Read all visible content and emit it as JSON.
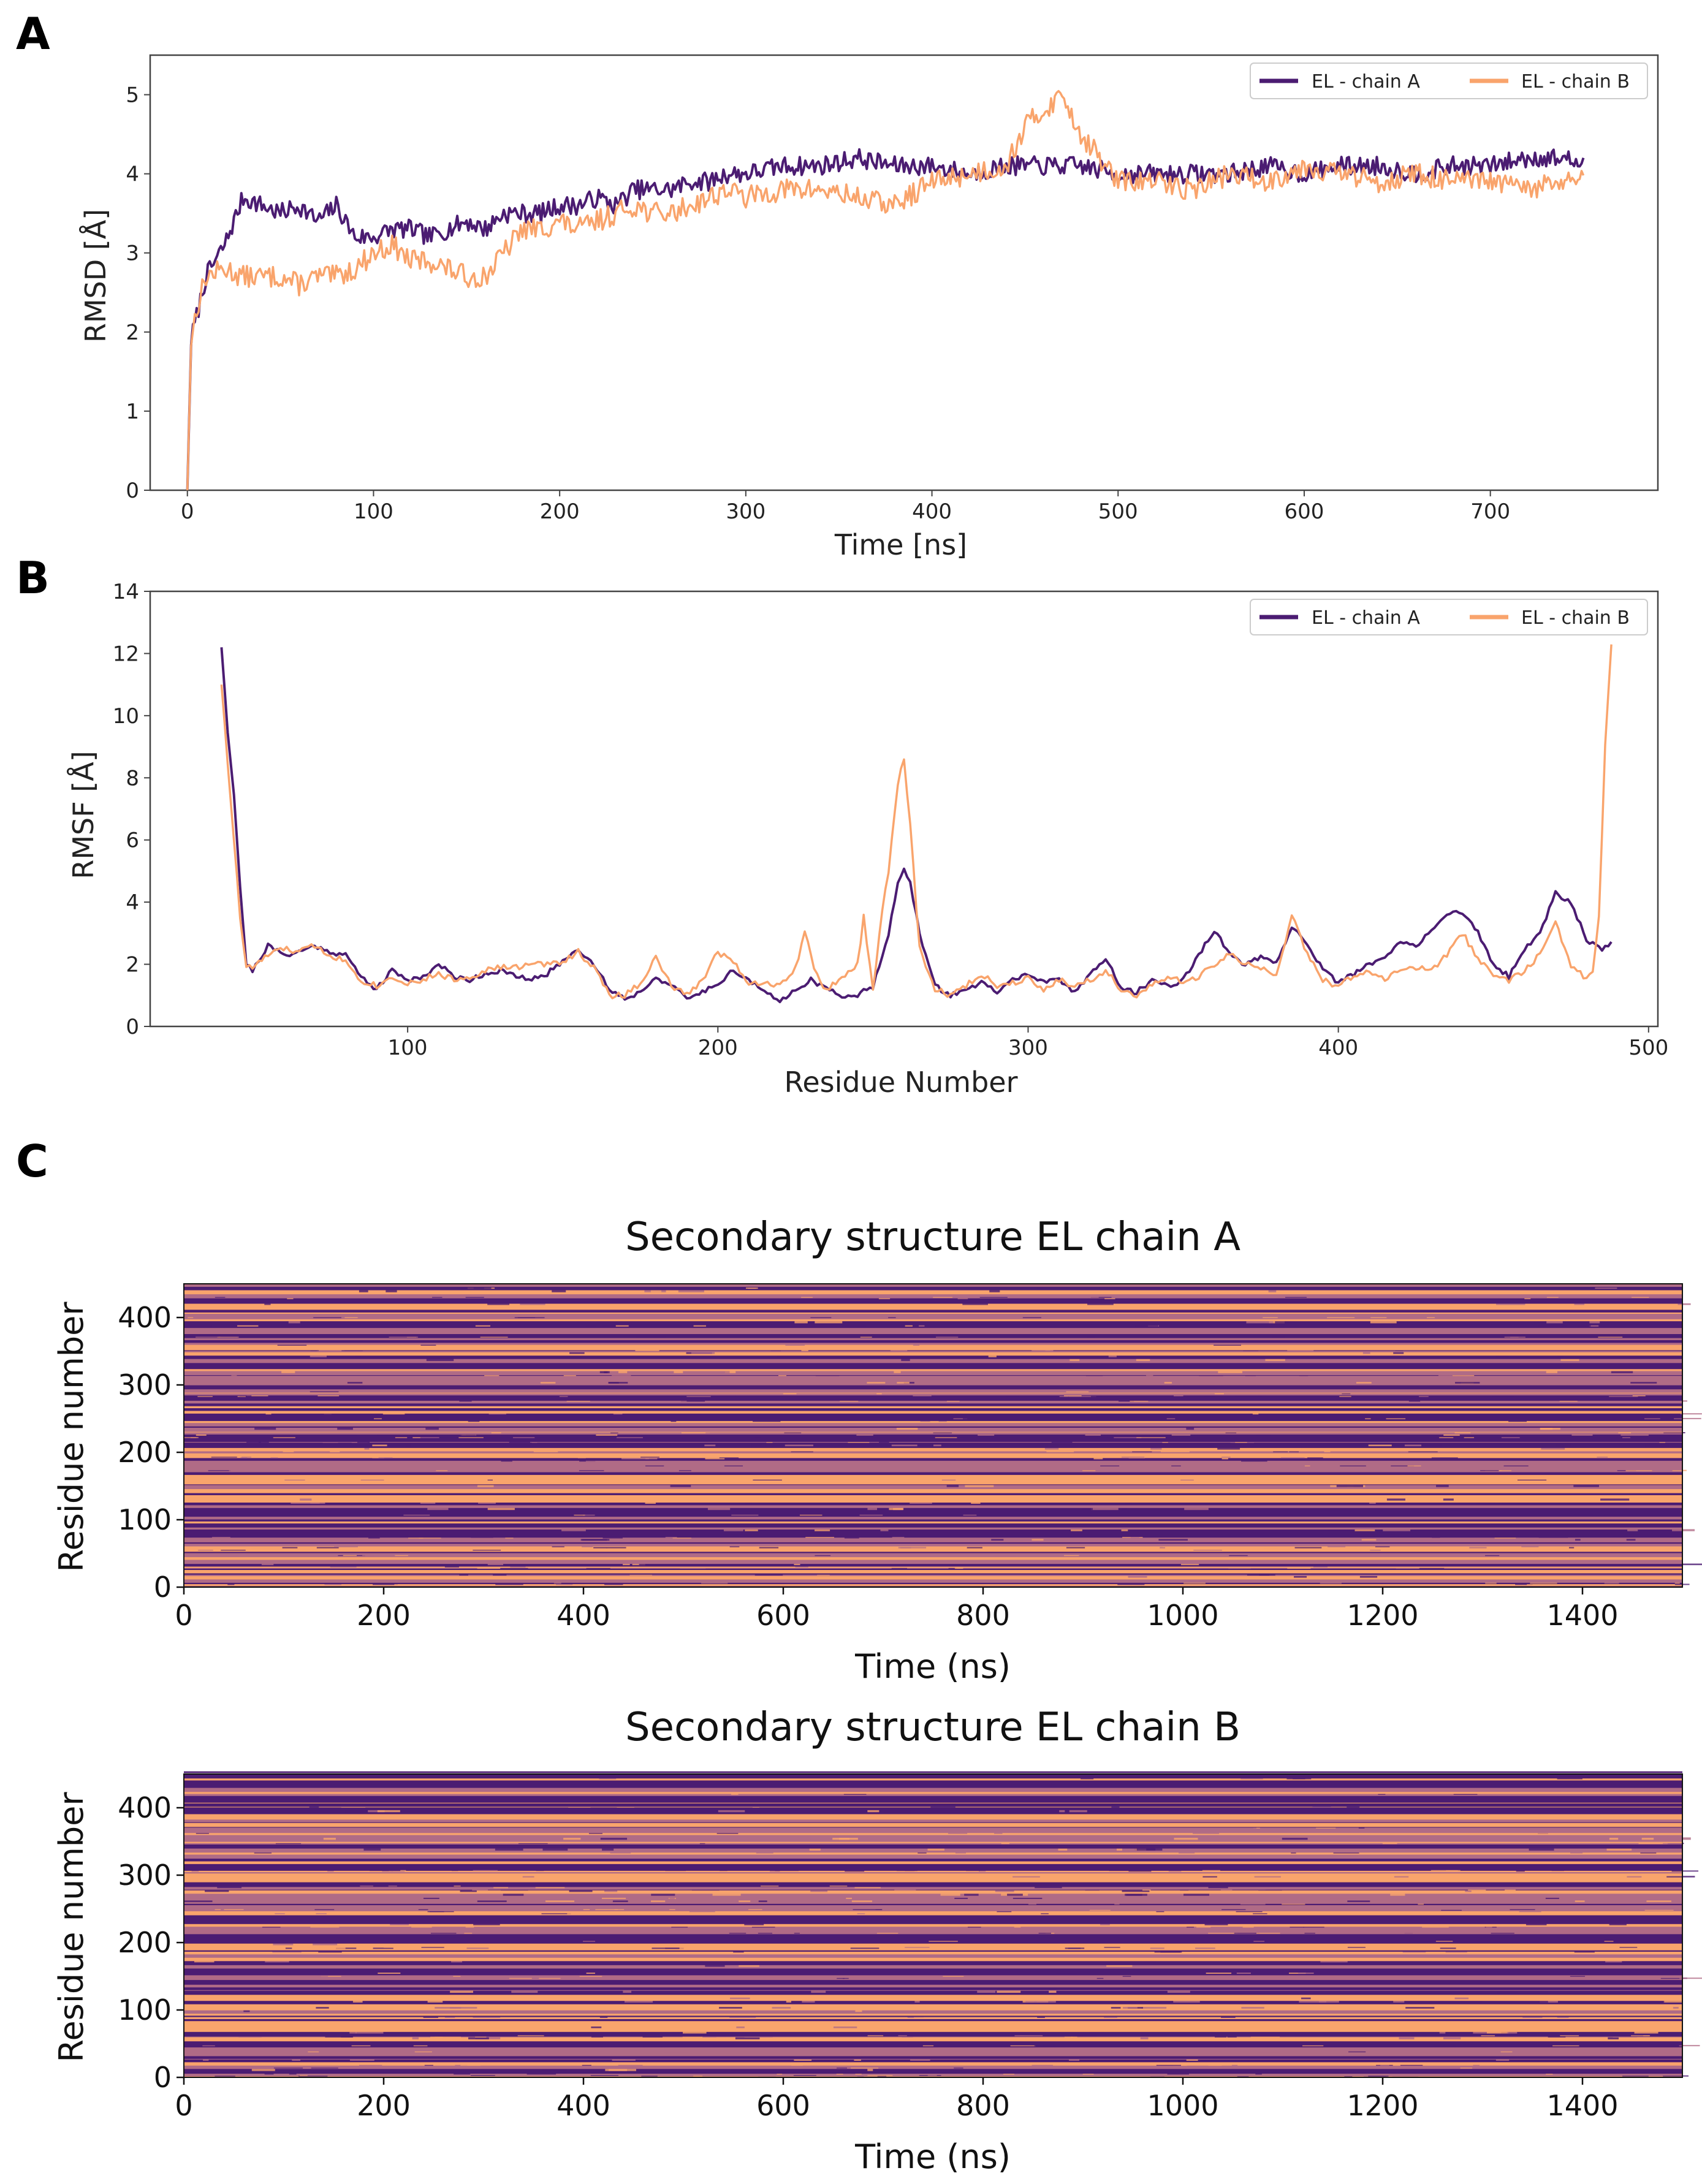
{
  "figure": {
    "panel_letters": [
      "A",
      "B",
      "C"
    ]
  },
  "colors": {
    "chain_a": "#4b1c72",
    "chain_b": "#f9a46c",
    "ss_mid": "#b06b86",
    "axis": "#444444"
  },
  "chart_data": [
    {
      "id": "rmsd",
      "type": "line",
      "panel": "A",
      "title": "",
      "xlabel": "Time [ns]",
      "ylabel": "RMSD [Å]",
      "xlim": [
        -20,
        790
      ],
      "ylim": [
        0,
        5.5
      ],
      "xticks": [
        0,
        100,
        200,
        300,
        400,
        500,
        600,
        700
      ],
      "yticks": [
        0,
        1,
        2,
        3,
        4,
        5
      ],
      "legend": [
        "EL - chain A",
        "EL - chain B"
      ],
      "legend_position": "top-right",
      "series": [
        {
          "name": "EL - chain A",
          "x": [
            0,
            2,
            5,
            10,
            20,
            30,
            40,
            50,
            60,
            70,
            80,
            90,
            100,
            110,
            120,
            130,
            140,
            150,
            160,
            170,
            180,
            190,
            200,
            210,
            220,
            230,
            240,
            250,
            260,
            270,
            280,
            290,
            300,
            320,
            340,
            360,
            380,
            400,
            420,
            440,
            460,
            480,
            500,
            520,
            540,
            560,
            580,
            600,
            620,
            640,
            660,
            680,
            700,
            720,
            740,
            750
          ],
          "y": [
            0.0,
            1.9,
            2.2,
            2.7,
            3.1,
            3.7,
            3.6,
            3.5,
            3.6,
            3.4,
            3.6,
            3.2,
            3.2,
            3.3,
            3.3,
            3.2,
            3.3,
            3.4,
            3.3,
            3.5,
            3.5,
            3.5,
            3.6,
            3.6,
            3.7,
            3.6,
            3.8,
            3.8,
            3.8,
            3.9,
            3.9,
            4.0,
            4.0,
            4.1,
            4.1,
            4.2,
            4.1,
            4.1,
            4.0,
            4.1,
            4.1,
            4.1,
            4.0,
            4.0,
            4.0,
            4.0,
            4.1,
            4.0,
            4.1,
            4.1,
            4.0,
            4.1,
            4.1,
            4.2,
            4.2,
            4.1
          ],
          "noise": 0.12,
          "seed": 7
        },
        {
          "name": "EL - chain B",
          "x": [
            0,
            2,
            5,
            10,
            20,
            30,
            40,
            50,
            60,
            70,
            80,
            90,
            100,
            110,
            120,
            130,
            140,
            150,
            160,
            170,
            180,
            190,
            200,
            210,
            220,
            230,
            240,
            250,
            260,
            270,
            280,
            290,
            300,
            320,
            340,
            360,
            380,
            400,
            420,
            440,
            450,
            460,
            470,
            480,
            500,
            520,
            540,
            560,
            580,
            600,
            620,
            640,
            660,
            680,
            700,
            720,
            740,
            750
          ],
          "y": [
            0.0,
            1.9,
            2.3,
            2.7,
            2.8,
            2.7,
            2.7,
            2.7,
            2.6,
            2.7,
            2.7,
            2.8,
            3.0,
            3.1,
            2.9,
            2.9,
            2.8,
            2.7,
            2.7,
            3.0,
            3.3,
            3.3,
            3.4,
            3.3,
            3.4,
            3.5,
            3.6,
            3.5,
            3.5,
            3.6,
            3.7,
            3.8,
            3.7,
            3.8,
            3.8,
            3.7,
            3.6,
            3.9,
            4.0,
            4.1,
            4.6,
            4.8,
            5.0,
            4.5,
            3.9,
            3.9,
            3.8,
            4.0,
            3.9,
            4.1,
            4.0,
            3.9,
            4.0,
            3.9,
            3.9,
            3.8,
            3.9,
            3.9
          ],
          "noise": 0.14,
          "seed": 13
        }
      ]
    },
    {
      "id": "rmsf",
      "type": "line",
      "panel": "B",
      "title": "",
      "xlabel": "Residue Number",
      "ylabel": "RMSF [Å]",
      "xlim": [
        17,
        503
      ],
      "ylim": [
        0,
        14
      ],
      "xticks": [
        100,
        200,
        300,
        400,
        500
      ],
      "yticks": [
        0,
        2,
        4,
        6,
        8,
        10,
        12,
        14
      ],
      "legend": [
        "EL - chain A",
        "EL - chain B"
      ],
      "legend_position": "top-right",
      "series": [
        {
          "name": "EL - chain A",
          "x": [
            40,
            42,
            44,
            46,
            48,
            50,
            55,
            60,
            65,
            70,
            75,
            80,
            85,
            90,
            95,
            100,
            105,
            110,
            115,
            120,
            125,
            130,
            135,
            140,
            145,
            150,
            155,
            160,
            165,
            170,
            175,
            180,
            185,
            190,
            195,
            200,
            205,
            210,
            215,
            220,
            225,
            230,
            235,
            240,
            245,
            250,
            255,
            258,
            260,
            262,
            265,
            270,
            275,
            280,
            285,
            290,
            295,
            300,
            305,
            310,
            315,
            320,
            325,
            330,
            335,
            340,
            345,
            350,
            355,
            360,
            365,
            370,
            375,
            380,
            385,
            390,
            395,
            400,
            405,
            410,
            415,
            420,
            425,
            430,
            435,
            440,
            445,
            450,
            455,
            460,
            465,
            470,
            475,
            480,
            485,
            488
          ],
          "y": [
            12.2,
            9.5,
            7.5,
            4.5,
            2.0,
            1.8,
            2.6,
            2.3,
            2.4,
            2.6,
            2.4,
            2.3,
            1.6,
            1.2,
            1.8,
            1.5,
            1.6,
            2.0,
            1.6,
            1.5,
            1.7,
            1.8,
            1.6,
            1.5,
            1.7,
            2.1,
            2.5,
            2.0,
            1.2,
            0.9,
            1.1,
            1.6,
            1.3,
            0.9,
            1.1,
            1.4,
            1.8,
            1.5,
            1.1,
            0.8,
            1.2,
            1.5,
            1.2,
            1.0,
            1.0,
            1.3,
            3.0,
            4.6,
            5.0,
            4.6,
            3.0,
            1.3,
            1.0,
            1.2,
            1.4,
            1.1,
            1.5,
            1.7,
            1.4,
            1.5,
            1.1,
            1.7,
            2.2,
            1.2,
            1.1,
            1.5,
            1.3,
            1.5,
            2.3,
            3.1,
            2.3,
            2.0,
            2.2,
            2.0,
            3.2,
            2.7,
            1.8,
            1.4,
            1.7,
            2.0,
            2.2,
            2.7,
            2.6,
            3.1,
            3.6,
            3.7,
            3.0,
            2.0,
            1.6,
            2.5,
            3.0,
            4.3,
            4.0,
            2.8,
            2.5,
            2.7
          ],
          "noise": 0.08,
          "seed": 21
        },
        {
          "name": "EL - chain B",
          "x": [
            40,
            42,
            44,
            46,
            48,
            50,
            55,
            60,
            65,
            70,
            75,
            80,
            85,
            90,
            95,
            100,
            105,
            110,
            115,
            120,
            125,
            130,
            135,
            140,
            145,
            150,
            155,
            160,
            165,
            170,
            175,
            180,
            185,
            190,
            195,
            200,
            205,
            210,
            215,
            220,
            225,
            228,
            232,
            235,
            240,
            245,
            247,
            250,
            253,
            255,
            258,
            260,
            262,
            265,
            270,
            275,
            280,
            285,
            290,
            295,
            300,
            305,
            310,
            315,
            320,
            325,
            330,
            335,
            340,
            345,
            350,
            355,
            360,
            365,
            370,
            375,
            380,
            385,
            390,
            395,
            400,
            405,
            410,
            415,
            420,
            425,
            430,
            435,
            440,
            445,
            450,
            455,
            460,
            465,
            470,
            475,
            480,
            482,
            484,
            486,
            488
          ],
          "y": [
            11.0,
            8.5,
            6.0,
            3.5,
            1.9,
            1.9,
            2.3,
            2.5,
            2.4,
            2.6,
            2.3,
            2.1,
            1.5,
            1.3,
            1.6,
            1.4,
            1.5,
            1.7,
            1.5,
            1.6,
            1.8,
            1.9,
            1.9,
            2.0,
            2.0,
            2.1,
            2.4,
            1.9,
            1.0,
            1.0,
            1.4,
            2.2,
            1.3,
            1.0,
            1.5,
            2.4,
            2.1,
            1.4,
            1.4,
            1.3,
            1.9,
            3.0,
            1.6,
            1.2,
            1.5,
            2.0,
            3.5,
            1.2,
            3.7,
            5.0,
            7.8,
            8.6,
            6.5,
            2.5,
            1.2,
            1.0,
            1.3,
            1.7,
            1.3,
            1.4,
            1.6,
            1.2,
            1.5,
            1.3,
            1.5,
            1.8,
            1.2,
            1.0,
            1.3,
            1.6,
            1.4,
            1.6,
            2.0,
            2.3,
            2.0,
            1.9,
            1.6,
            3.6,
            2.3,
            1.5,
            1.3,
            1.6,
            1.8,
            1.5,
            1.8,
            1.9,
            1.8,
            2.3,
            3.0,
            2.2,
            1.6,
            1.5,
            1.8,
            2.3,
            3.3,
            2.0,
            1.5,
            1.7,
            3.5,
            9.0,
            12.2
          ],
          "noise": 0.1,
          "seed": 33
        }
      ]
    },
    {
      "id": "ss_chain_a",
      "type": "heatmap",
      "panel": "C",
      "title": "Secondary structure EL chain A",
      "xlabel": "Time (ns)",
      "ylabel": "Residue number",
      "xlim": [
        0,
        1500
      ],
      "ylim": [
        0,
        450
      ],
      "xticks": [
        0,
        200,
        400,
        600,
        800,
        1000,
        1200,
        1400
      ],
      "yticks": [
        0,
        100,
        200,
        300,
        400
      ],
      "seed": 101
    },
    {
      "id": "ss_chain_b",
      "type": "heatmap",
      "panel": "C",
      "title": "Secondary structure EL chain B",
      "xlabel": "Time (ns)",
      "ylabel": "Residue number",
      "xlim": [
        0,
        1500
      ],
      "ylim": [
        0,
        450
      ],
      "xticks": [
        0,
        200,
        400,
        600,
        800,
        1000,
        1200,
        1400
      ],
      "yticks": [
        0,
        100,
        200,
        300,
        400
      ],
      "seed": 202
    }
  ]
}
